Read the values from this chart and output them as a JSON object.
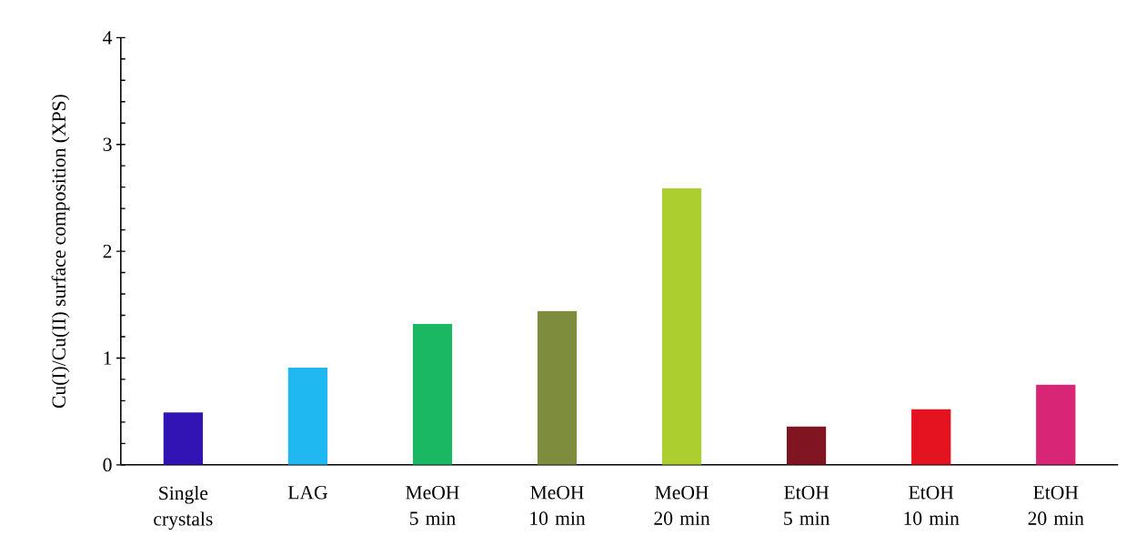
{
  "chart_data": {
    "type": "bar",
    "ylabel": "Cu(I)/Cu(II) surface composition (XPS)",
    "categories": [
      "Single crystals",
      "LAG",
      "MeOH 5 min",
      "MeOH 10 min",
      "MeOH 20 min",
      "EtOH 5 min",
      "EtOH 10 min",
      "EtOH 20 min"
    ],
    "values": [
      0.49,
      0.91,
      1.32,
      1.44,
      2.59,
      0.36,
      0.52,
      0.75
    ],
    "colors": [
      "#3214b4",
      "#1fb8f0",
      "#1ab862",
      "#7e8d3d",
      "#adce2f",
      "#801420",
      "#e31420",
      "#d92575"
    ],
    "ylim": [
      0,
      4
    ],
    "yticks": [
      0,
      1,
      2,
      3,
      4
    ],
    "grid": false
  }
}
